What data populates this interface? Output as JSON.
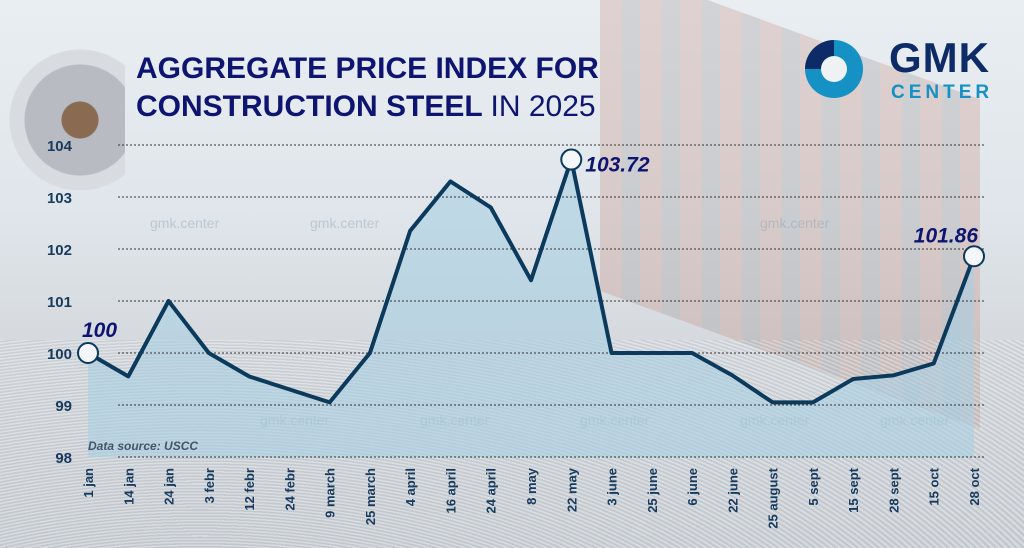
{
  "title": {
    "bold": "AGGREGATE PRICE INDEX FOR CONSTRUCTION STEEL",
    "light": "IN 2025"
  },
  "logo": {
    "line1": "GMK",
    "line2": "CENTER"
  },
  "watermark": "gmk.center",
  "source": "Data source: USCC",
  "colors": {
    "line": "#0b3a5c",
    "fill": "#a9cfe2",
    "title": "#0d1570",
    "label": "#0d1570",
    "axis_text": "#173a5e"
  },
  "chart_data": {
    "type": "line",
    "title": "AGGREGATE PRICE INDEX FOR CONSTRUCTION STEEL IN 2025",
    "xlabel": "",
    "ylabel": "",
    "ylim": [
      98,
      104
    ],
    "yticks": [
      98,
      99,
      100,
      101,
      102,
      103,
      104
    ],
    "grid": true,
    "categories": [
      "1 jan",
      "14 jan",
      "24 jan",
      "3 febr",
      "12 febr",
      "24 febr",
      "9 march",
      "25 march",
      "4 april",
      "16 april",
      "24 april",
      "8 may",
      "22 may",
      "3 june",
      "25 june",
      "6 june",
      "22 june",
      "25 august",
      "5 sept",
      "15 sept",
      "28 sept",
      "15 oct",
      "28 oct"
    ],
    "values": [
      100,
      99.55,
      101,
      100,
      99.55,
      99.3,
      99.05,
      100,
      102.35,
      103.3,
      102.8,
      101.4,
      103.72,
      100,
      100,
      100,
      99.57,
      99.05,
      99.05,
      99.5,
      99.57,
      99.8,
      101.86
    ],
    "annotations": [
      {
        "category": "1 jan",
        "label": "100"
      },
      {
        "category": "22 may",
        "label": "103.72"
      },
      {
        "category": "28 oct",
        "label": "101.86"
      }
    ]
  }
}
